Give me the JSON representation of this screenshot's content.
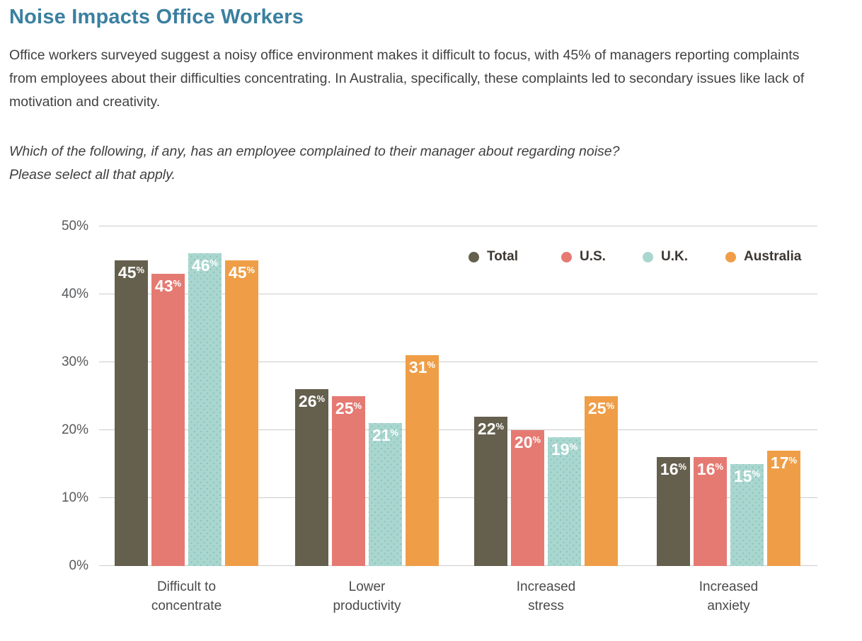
{
  "page": {
    "title": "Noise Impacts Office Workers",
    "intro": "Office workers surveyed suggest a noisy office environment makes it difficult to focus, with 45% of managers reporting complaints from employees about their difficulties concentrating. In Australia, specifically, these complaints led to secondary issues like lack of motivation and creativity.",
    "question_line1": "Which of the following, if any, has an employee complained to their manager about regarding noise?",
    "question_line2": "Please select all that apply."
  },
  "colors": {
    "title": "#3a80a0",
    "body_text": "#414141",
    "axis_text": "#58595b",
    "gridline": "#cccccc",
    "bar_value_label": "#ffffff",
    "total": "#655f4e",
    "us": "#e57a72",
    "uk": "#a9d7d0",
    "uk_dot": "#8cc4bb",
    "australia": "#ef9e47"
  },
  "chart_data": {
    "type": "bar",
    "categories": [
      [
        "Difficult to",
        "concentrate"
      ],
      [
        "Lower",
        "productivity"
      ],
      [
        "Increased",
        "stress"
      ],
      [
        "Increased",
        "anxiety"
      ]
    ],
    "series": [
      {
        "name": "Total",
        "color_key": "total",
        "dotted": false,
        "values": [
          45,
          26,
          22,
          16
        ]
      },
      {
        "name": "U.S.",
        "color_key": "us",
        "dotted": false,
        "values": [
          43,
          25,
          20,
          16
        ]
      },
      {
        "name": "U.K.",
        "color_key": "uk",
        "dotted": true,
        "values": [
          46,
          21,
          19,
          15
        ]
      },
      {
        "name": "Australia",
        "color_key": "australia",
        "dotted": false,
        "values": [
          45,
          31,
          25,
          17
        ]
      }
    ],
    "value_suffix": "%",
    "ylim": [
      0,
      50
    ],
    "yticks": [
      0,
      10,
      20,
      30,
      40,
      50
    ],
    "ytick_suffix": "%",
    "grid": true,
    "legend_position": "top-right"
  }
}
